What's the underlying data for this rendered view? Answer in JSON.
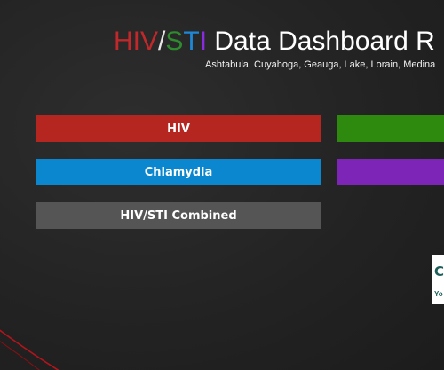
{
  "header": {
    "title_part_hiv": "HIV",
    "title_part_slash": "/",
    "title_part_s": "S",
    "title_part_t": "T",
    "title_part_i": "I",
    "title_rest": " Data Dashboard R",
    "subtitle": "Ashtabula, Cuyahoga, Geauga, Lake, Lorain, Medina"
  },
  "tiles": {
    "hiv": "HIV",
    "chlamydia": "Chlamydia",
    "combined": "HIV/STI Combined",
    "green": "",
    "purple": ""
  },
  "colors": {
    "hiv_tile": "#b52620",
    "green_tile": "#2e8a0f",
    "chlamydia_tile": "#0a87cf",
    "purple_tile": "#7c25b6",
    "combined_tile": "#555555",
    "background": "#222222"
  },
  "logo": {
    "letter": "C",
    "text": "Yo"
  }
}
